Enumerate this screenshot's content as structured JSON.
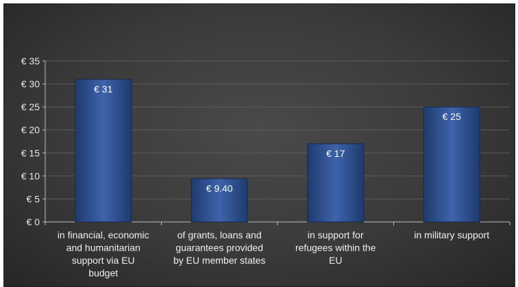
{
  "chart_data": {
    "type": "bar",
    "title": "",
    "xlabel": "",
    "ylabel": "",
    "ylim": [
      0,
      35
    ],
    "y_ticks": [
      "€ 0",
      "€ 5",
      "€ 10",
      "€ 15",
      "€ 20",
      "€ 25",
      "€ 30",
      "€ 35"
    ],
    "y_tick_values": [
      0,
      5,
      10,
      15,
      20,
      25,
      30,
      35
    ],
    "grid": true,
    "legend": "none",
    "bar_color": "#2f5597",
    "categories": [
      [
        "in financial, economic",
        "and humanitarian",
        "support via EU",
        "budget"
      ],
      [
        "of grants, loans and",
        "guarantees provided",
        "by EU member states"
      ],
      [
        "in support for",
        "refugees within the",
        "EU"
      ],
      [
        "in military support"
      ]
    ],
    "values": [
      31,
      9.4,
      17,
      25
    ],
    "data_labels": [
      "€ 31",
      "€ 9.40",
      "€ 17",
      "€ 25"
    ]
  }
}
